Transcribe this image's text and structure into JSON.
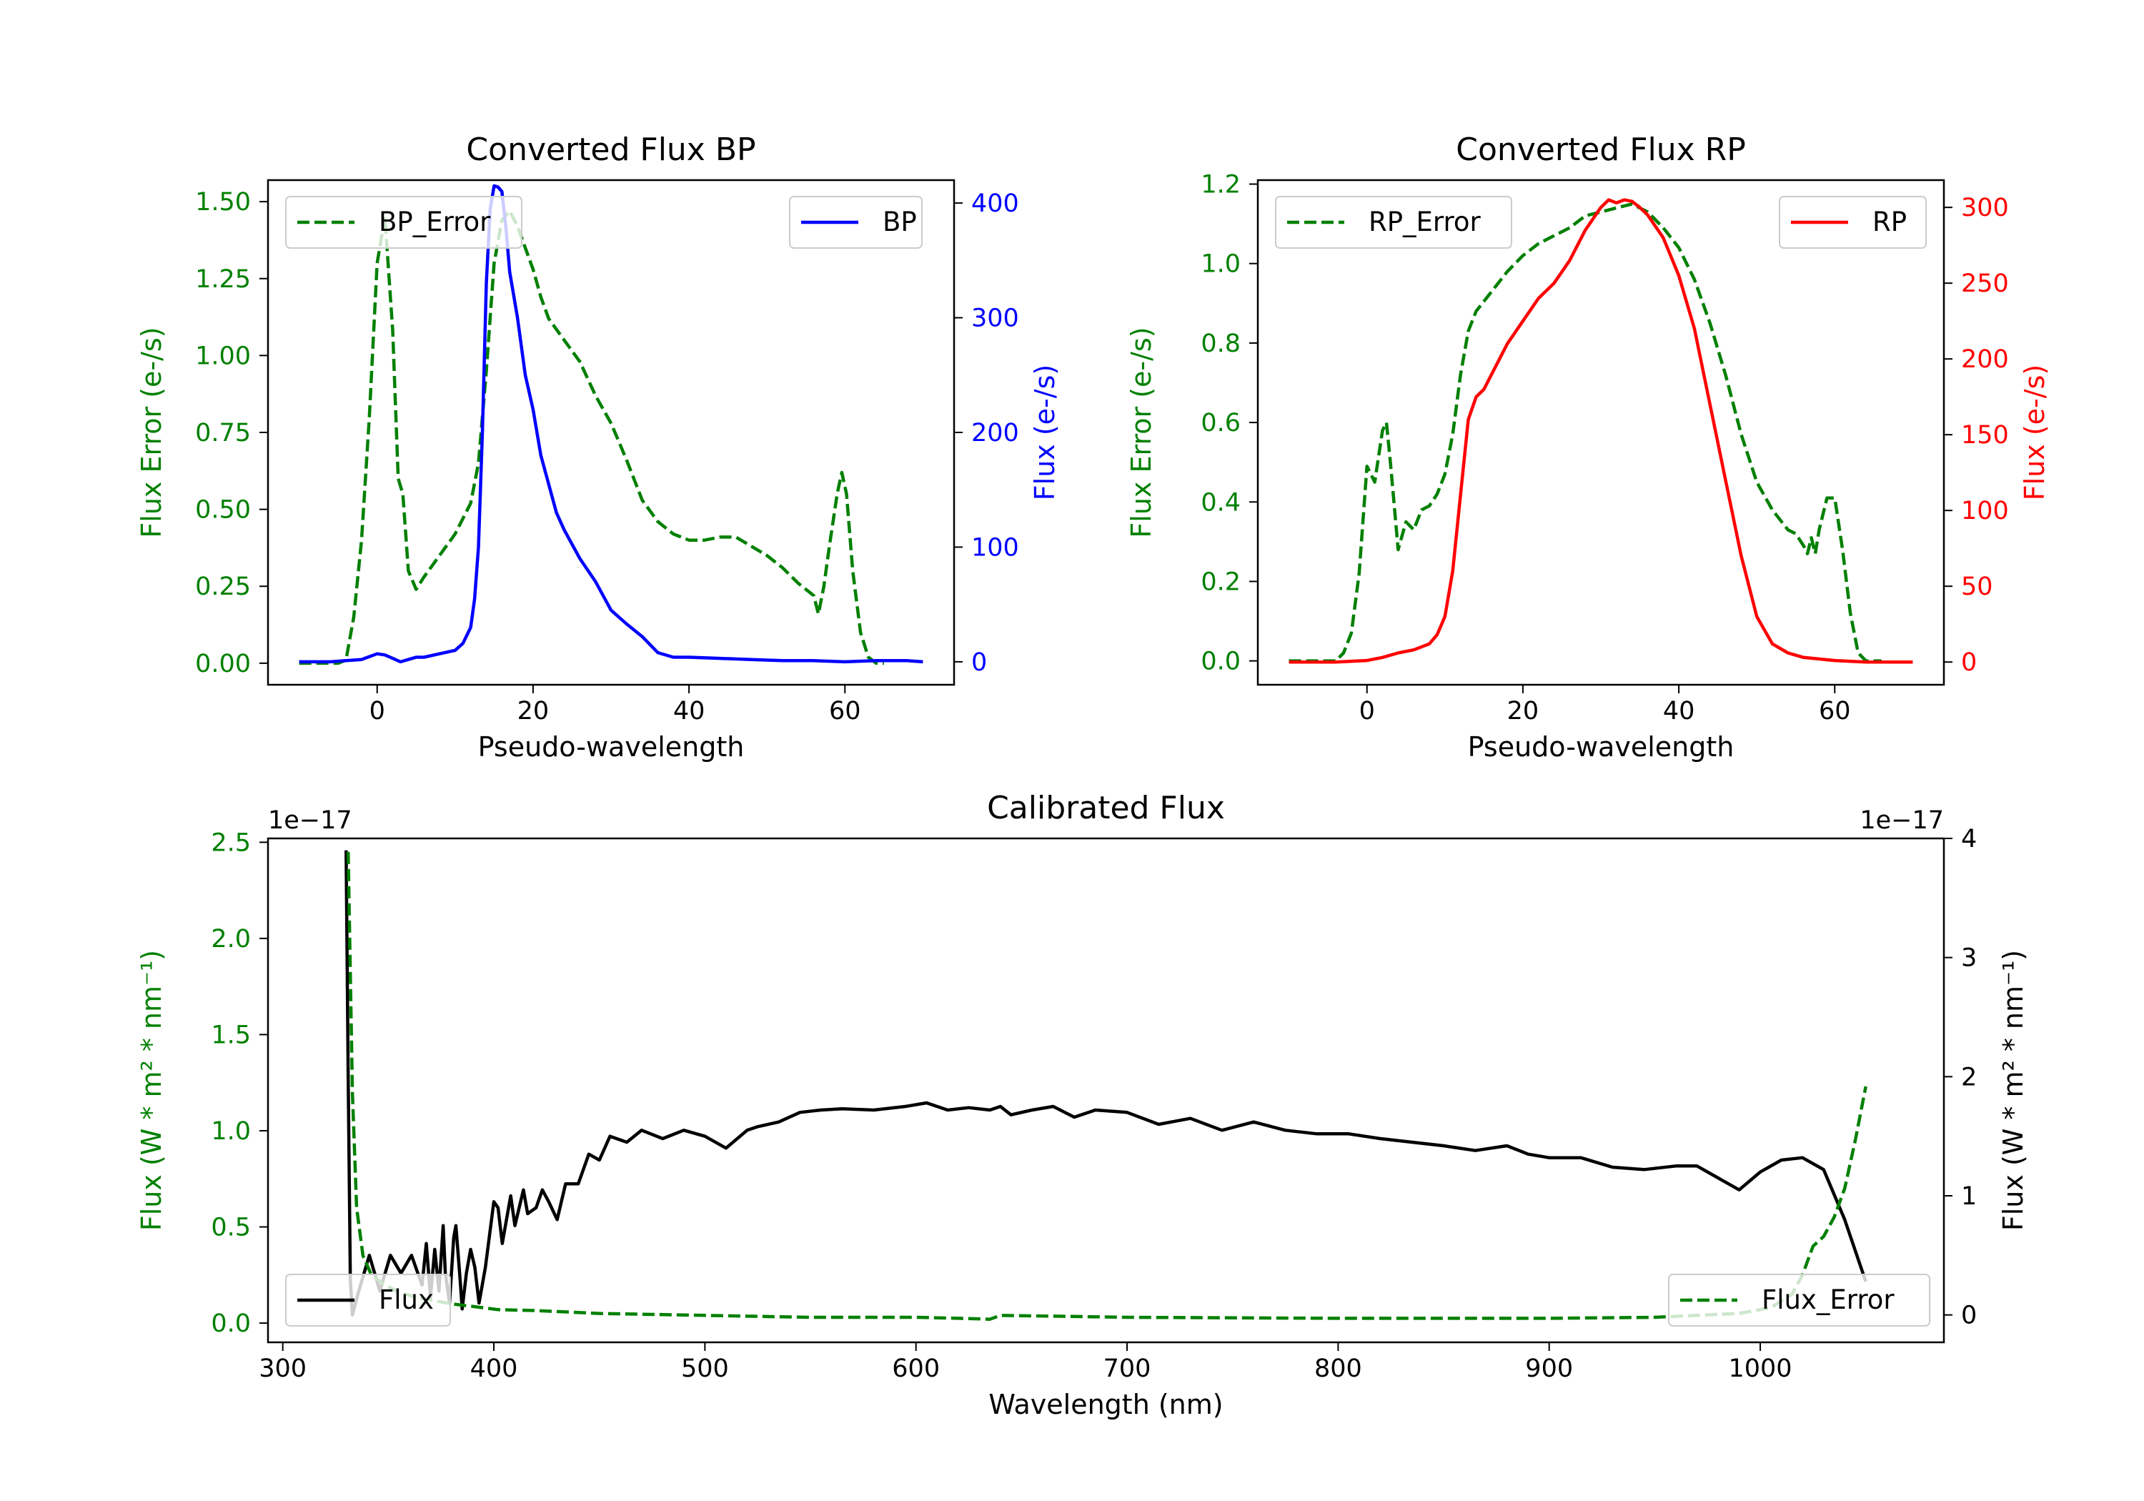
{
  "chart_data": [
    {
      "type": "line",
      "title": "Converted Flux BP",
      "xlabel": "Pseudo-wavelength",
      "ylabel_left": "Flux Error (e-/s)",
      "ylabel_right": "Flux (e-/s)",
      "xlim": [
        -14,
        74
      ],
      "ylim_left": [
        -0.07,
        1.57
      ],
      "ylim_right": [
        -20,
        420
      ],
      "x_ticks": [
        "0",
        "20",
        "40",
        "60"
      ],
      "y_ticks_left": [
        "0.00",
        "0.25",
        "0.50",
        "0.75",
        "1.00",
        "1.25",
        "1.50"
      ],
      "y_ticks_right": [
        "0",
        "100",
        "200",
        "300",
        "400"
      ],
      "series": [
        {
          "name": "BP_Error",
          "axis": "left",
          "style": "dashed",
          "color": "#008000",
          "x": [
            -10,
            -5,
            -4,
            -3,
            -2,
            -1,
            0,
            1,
            2,
            2.7,
            3.3,
            4,
            5,
            6,
            8,
            10,
            12,
            13,
            14,
            15,
            16,
            17,
            18,
            19,
            20,
            21,
            22,
            24,
            26,
            28,
            30,
            32,
            34,
            36,
            38,
            40,
            42,
            44,
            46,
            48,
            50,
            52,
            54,
            56,
            56.6,
            57.3,
            58,
            59,
            59.6,
            60.2,
            61,
            62,
            63,
            64,
            65
          ],
          "values": [
            0,
            0,
            0.01,
            0.15,
            0.4,
            0.8,
            1.3,
            1.45,
            1.08,
            0.6,
            0.55,
            0.3,
            0.24,
            0.28,
            0.35,
            0.42,
            0.52,
            0.65,
            0.95,
            1.3,
            1.44,
            1.47,
            1.42,
            1.35,
            1.28,
            1.19,
            1.12,
            1.05,
            0.98,
            0.87,
            0.78,
            0.66,
            0.53,
            0.46,
            0.42,
            0.4,
            0.4,
            0.41,
            0.41,
            0.38,
            0.35,
            0.31,
            0.26,
            0.22,
            0.16,
            0.25,
            0.38,
            0.55,
            0.62,
            0.55,
            0.3,
            0.1,
            0.02,
            0.0,
            0.0
          ]
        },
        {
          "name": "BP",
          "axis": "right",
          "style": "solid",
          "color": "#0000ff",
          "x": [
            -10,
            -6,
            -4,
            -2,
            0,
            1,
            2,
            3,
            4,
            5,
            6,
            8,
            10,
            11,
            12,
            12.5,
            13,
            13.5,
            14,
            14.5,
            15,
            15.5,
            16,
            16.5,
            17,
            18,
            19,
            20,
            21,
            22,
            23,
            24,
            26,
            28,
            30,
            32,
            34,
            35,
            36,
            38,
            40,
            44,
            48,
            52,
            56,
            60,
            64,
            68,
            70
          ],
          "values": [
            0,
            0,
            1,
            2,
            7,
            6,
            3,
            0,
            2,
            4,
            4,
            7,
            10,
            16,
            30,
            55,
            100,
            200,
            330,
            395,
            415,
            414,
            410,
            380,
            340,
            300,
            250,
            220,
            180,
            155,
            130,
            115,
            90,
            70,
            45,
            33,
            22,
            15,
            8,
            4,
            4,
            3,
            2,
            1,
            1,
            0,
            1,
            1,
            0
          ]
        }
      ],
      "legend": [
        "BP_Error",
        "BP"
      ],
      "legend_placement": [
        "top-left",
        "top-right"
      ]
    },
    {
      "type": "line",
      "title": "Converted Flux RP",
      "xlabel": "Pseudo-wavelength",
      "ylabel_left": "Flux Error (e-/s)",
      "ylabel_right": "Flux (e-/s)",
      "xlim": [
        -14,
        74
      ],
      "ylim_left": [
        -0.06,
        1.21
      ],
      "ylim_right": [
        -15,
        318
      ],
      "x_ticks": [
        "0",
        "20",
        "40",
        "60"
      ],
      "y_ticks_left": [
        "0.0",
        "0.2",
        "0.4",
        "0.6",
        "0.8",
        "1.0",
        "1.2"
      ],
      "y_ticks_right": [
        "0",
        "50",
        "100",
        "150",
        "200",
        "250",
        "300"
      ],
      "series": [
        {
          "name": "RP_Error",
          "axis": "left",
          "style": "dashed",
          "color": "#008000",
          "x": [
            -10,
            -4,
            -3,
            -2,
            -1,
            0,
            1,
            2,
            2.5,
            3,
            4,
            5,
            6,
            7,
            8,
            9,
            10,
            11,
            12,
            13,
            14,
            16,
            18,
            20,
            22,
            24,
            26,
            28,
            30,
            32,
            34,
            36,
            38,
            40,
            42,
            44,
            46,
            48,
            50,
            52,
            54,
            55,
            56,
            56.5,
            57,
            57.5,
            58,
            59,
            60,
            61,
            62,
            63,
            64,
            66
          ],
          "values": [
            0,
            0,
            0.02,
            0.07,
            0.22,
            0.49,
            0.45,
            0.58,
            0.6,
            0.5,
            0.28,
            0.35,
            0.33,
            0.38,
            0.39,
            0.42,
            0.47,
            0.57,
            0.72,
            0.83,
            0.88,
            0.93,
            0.98,
            1.02,
            1.05,
            1.07,
            1.09,
            1.12,
            1.13,
            1.14,
            1.15,
            1.13,
            1.09,
            1.04,
            0.96,
            0.85,
            0.72,
            0.57,
            0.45,
            0.38,
            0.33,
            0.32,
            0.29,
            0.27,
            0.31,
            0.27,
            0.33,
            0.41,
            0.41,
            0.28,
            0.12,
            0.02,
            0.0,
            0.0
          ]
        },
        {
          "name": "RP",
          "axis": "right",
          "style": "solid",
          "color": "#ff0000",
          "x": [
            -10,
            -4,
            0,
            2,
            4,
            6,
            8,
            9,
            10,
            11,
            12,
            13,
            14,
            15,
            16,
            18,
            20,
            22,
            24,
            26,
            28,
            30,
            31,
            32,
            33,
            34,
            35,
            36,
            38,
            40,
            42,
            44,
            46,
            48,
            50,
            52,
            54,
            56,
            60,
            64,
            68,
            70
          ],
          "values": [
            0,
            0,
            1,
            3,
            6,
            8,
            12,
            18,
            30,
            60,
            110,
            160,
            175,
            180,
            190,
            210,
            225,
            240,
            250,
            265,
            285,
            300,
            305,
            303,
            305,
            304,
            300,
            295,
            280,
            255,
            220,
            170,
            120,
            70,
            30,
            12,
            6,
            3,
            1,
            0,
            0,
            0
          ]
        }
      ],
      "legend": [
        "RP_Error",
        "RP"
      ],
      "legend_placement": [
        "top-left",
        "top-right"
      ]
    },
    {
      "type": "line",
      "title": "Calibrated Flux",
      "xlabel": "Wavelength (nm)",
      "ylabel_left": "Flux (W * m² * nm⁻¹)",
      "ylabel_right": "Flux (W * m² * nm⁻¹)",
      "offset_left": "1e−17",
      "offset_right": "1e−17",
      "xlim": [
        293,
        1087
      ],
      "ylim_left": [
        -0.1,
        2.52
      ],
      "ylim_right": [
        -0.23,
        4.0
      ],
      "x_ticks": [
        "300",
        "400",
        "500",
        "600",
        "700",
        "800",
        "900",
        "1000"
      ],
      "y_ticks_left": [
        "0.0",
        "0.5",
        "1.0",
        "1.5",
        "2.0",
        "2.5"
      ],
      "y_ticks_right": [
        "0",
        "1",
        "2",
        "3",
        "4"
      ],
      "series": [
        {
          "name": "Flux",
          "axis": "right",
          "style": "solid",
          "color": "#000000",
          "x": [
            330,
            331,
            332,
            333,
            336,
            341,
            346,
            351,
            356,
            361,
            366,
            368,
            370,
            372,
            374,
            376,
            377,
            379,
            381,
            382,
            384,
            385,
            387,
            389,
            391,
            393,
            396,
            400,
            402,
            404,
            408,
            410,
            414,
            416,
            420,
            423,
            426,
            430,
            434,
            440,
            445,
            450,
            455,
            463,
            470,
            480,
            490,
            500,
            510,
            520,
            525,
            535,
            545,
            555,
            565,
            580,
            595,
            605,
            615,
            625,
            635,
            640,
            645,
            655,
            665,
            675,
            685,
            700,
            715,
            730,
            745,
            760,
            775,
            790,
            805,
            820,
            835,
            850,
            865,
            880,
            890,
            900,
            915,
            930,
            945,
            960,
            970,
            980,
            990,
            1000,
            1010,
            1020,
            1030,
            1040,
            1050
          ],
          "values": [
            3.9,
            2.0,
            0.3,
            0.0,
            0.2,
            0.5,
            0.2,
            0.5,
            0.35,
            0.5,
            0.25,
            0.6,
            0.15,
            0.55,
            0.2,
            0.75,
            0.35,
            0.1,
            0.65,
            0.75,
            0.3,
            0.05,
            0.35,
            0.55,
            0.4,
            0.1,
            0.4,
            0.95,
            0.9,
            0.6,
            1.0,
            0.75,
            1.05,
            0.85,
            0.9,
            1.05,
            0.95,
            0.8,
            1.1,
            1.1,
            1.35,
            1.3,
            1.5,
            1.45,
            1.55,
            1.48,
            1.55,
            1.5,
            1.4,
            1.55,
            1.58,
            1.62,
            1.7,
            1.72,
            1.73,
            1.72,
            1.75,
            1.78,
            1.72,
            1.74,
            1.72,
            1.75,
            1.68,
            1.72,
            1.75,
            1.66,
            1.72,
            1.7,
            1.6,
            1.65,
            1.55,
            1.62,
            1.55,
            1.52,
            1.52,
            1.48,
            1.45,
            1.42,
            1.38,
            1.42,
            1.35,
            1.32,
            1.32,
            1.24,
            1.22,
            1.25,
            1.25,
            1.15,
            1.05,
            1.2,
            1.3,
            1.32,
            1.22,
            0.8,
            0.28
          ]
        },
        {
          "name": "Flux_Error",
          "axis": "left",
          "style": "dashed",
          "color": "#008000",
          "x": [
            331,
            333,
            335,
            338,
            342,
            348,
            355,
            365,
            380,
            395,
            402,
            420,
            450,
            500,
            550,
            600,
            620,
            635,
            640,
            700,
            800,
            900,
            950,
            990,
            1005,
            1015,
            1020,
            1025,
            1030,
            1035,
            1040,
            1045,
            1050
          ],
          "values": [
            2.45,
            1.2,
            0.6,
            0.35,
            0.25,
            0.2,
            0.16,
            0.13,
            0.1,
            0.08,
            0.07,
            0.065,
            0.05,
            0.04,
            0.03,
            0.03,
            0.025,
            0.02,
            0.04,
            0.03,
            0.025,
            0.025,
            0.03,
            0.05,
            0.08,
            0.15,
            0.25,
            0.4,
            0.45,
            0.55,
            0.7,
            0.95,
            1.23
          ]
        }
      ],
      "legend": [
        "Flux",
        "Flux_Error"
      ],
      "legend_placement": [
        "bottom-left",
        "bottom-right"
      ]
    }
  ]
}
